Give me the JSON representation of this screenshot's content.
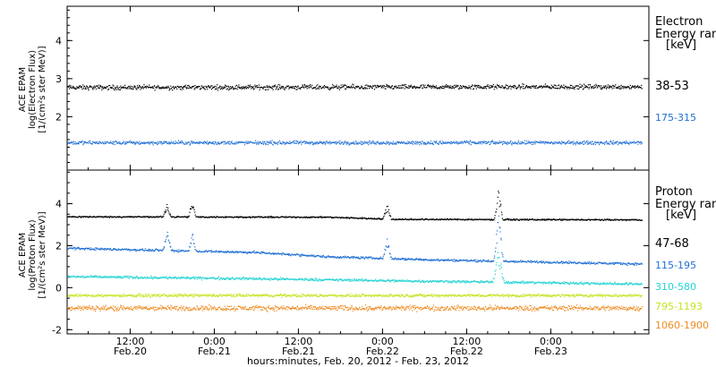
{
  "chart_data": {
    "type": "scatter",
    "x_axis": {
      "label": "hours:minutes, Feb. 20, 2012 - Feb. 23, 2012",
      "range_hours": [
        3,
        86
      ],
      "ticks": [
        {
          "hour": 12,
          "time": "12:00",
          "date": "Feb.20"
        },
        {
          "hour": 24,
          "time": "0:00",
          "date": "Feb.21"
        },
        {
          "hour": 36,
          "time": "12:00",
          "date": "Feb.21"
        },
        {
          "hour": 48,
          "time": "0:00",
          "date": "Feb.22"
        },
        {
          "hour": 60,
          "time": "12:00",
          "date": "Feb.22"
        },
        {
          "hour": 72,
          "time": "0:00",
          "date": "Feb.23"
        }
      ]
    },
    "panels": [
      {
        "id": "electron",
        "ylabel_lines": [
          "ACE EPAM",
          "log(Electron Flux)",
          "[1/(cm²s ster MeV)]"
        ],
        "ylim": [
          0.6,
          4.9
        ],
        "yticks": [
          "2",
          "3",
          "4"
        ],
        "legend_title": [
          "Electron",
          "Energy ran"
        ],
        "legend_unit": "[keV]",
        "series": [
          {
            "name": "38-53",
            "color": "#000000",
            "base": [
              [
                3,
                2.78
              ],
              [
                85,
                2.8
              ]
            ],
            "noise": 0.09,
            "spikes": []
          },
          {
            "name": "175-315",
            "color": "#1f6fd4",
            "base": [
              [
                3,
                1.33
              ],
              [
                85,
                1.33
              ]
            ],
            "noise": 0.07,
            "spikes": []
          }
        ]
      },
      {
        "id": "proton",
        "ylabel_lines": [
          "ACE EPAM",
          "log(Proton Flux)",
          "[1/(cm²s ster MeV)]"
        ],
        "ylim": [
          -2.2,
          5.6
        ],
        "yticks": [
          "-2",
          "0",
          "2",
          "4"
        ],
        "legend_title": [
          "Proton",
          "Energy ran"
        ],
        "legend_unit": "[keV]",
        "series": [
          {
            "name": "47-68",
            "color": "#000000",
            "base": [
              [
                3,
                3.4
              ],
              [
                40,
                3.38
              ],
              [
                50,
                3.28
              ],
              [
                85,
                3.25
              ]
            ],
            "noise": 0.05,
            "spikes": [
              [
                17.2,
                0.6,
                0.6
              ],
              [
                20.8,
                0.5,
                0.9
              ],
              [
                48.6,
                0.6,
                0.7
              ],
              [
                64.5,
                0.6,
                1.4
              ]
            ]
          },
          {
            "name": "115-195",
            "color": "#1f6fd4",
            "base": [
              [
                3,
                1.9
              ],
              [
                30,
                1.7
              ],
              [
                40,
                1.5
              ],
              [
                55,
                1.35
              ],
              [
                70,
                1.25
              ],
              [
                85,
                1.15
              ]
            ],
            "noise": 0.08,
            "spikes": [
              [
                17.2,
                0.6,
                0.9
              ],
              [
                20.8,
                0.5,
                1.0
              ],
              [
                48.6,
                0.6,
                1.0
              ],
              [
                64.5,
                0.7,
                2.2
              ]
            ]
          },
          {
            "name": "310-580",
            "color": "#23d3d3",
            "base": [
              [
                3,
                0.55
              ],
              [
                30,
                0.45
              ],
              [
                50,
                0.35
              ],
              [
                85,
                0.2
              ]
            ],
            "noise": 0.09,
            "spikes": [
              [
                64.5,
                0.8,
                1.5
              ]
            ]
          },
          {
            "name": "795-1193",
            "color": "#c8e21f",
            "base": [
              [
                3,
                -0.35
              ],
              [
                85,
                -0.35
              ]
            ],
            "noise": 0.1,
            "spikes": []
          },
          {
            "name": "1060-1900",
            "color": "#ee8a1e",
            "base": [
              [
                3,
                -0.95
              ],
              [
                85,
                -0.95
              ]
            ],
            "noise": 0.18,
            "spikes": []
          }
        ]
      }
    ]
  }
}
